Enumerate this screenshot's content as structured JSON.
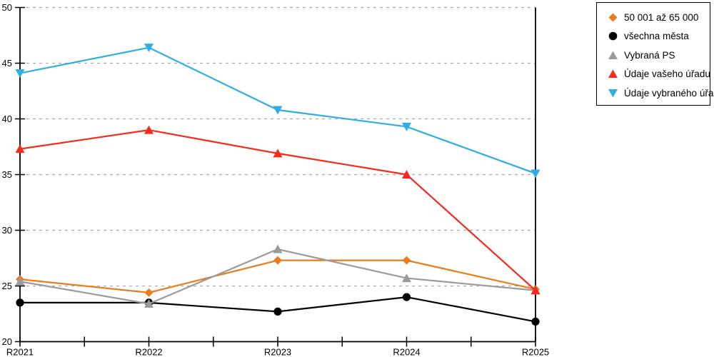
{
  "chart_data": {
    "type": "line",
    "categories": [
      "R2021",
      "R2022",
      "R2023",
      "R2024",
      "R2025"
    ],
    "y_ticks": [
      20,
      25,
      30,
      35,
      40,
      45,
      50
    ],
    "ylim": [
      20,
      50
    ],
    "grid": "horizontal-dashed",
    "legend_position": "top-right",
    "series": [
      {
        "name": "50 001 až 65 000",
        "color": "#E87D1E",
        "marker": "diamond",
        "values": [
          25.6,
          24.4,
          27.3,
          27.3,
          24.7
        ]
      },
      {
        "name": "všechna města",
        "color": "#000000",
        "marker": "circle",
        "values": [
          23.5,
          23.5,
          22.7,
          24.0,
          21.8
        ]
      },
      {
        "name": "Vybraná PS",
        "color": "#9B9B9B",
        "marker": "triangle-up",
        "values": [
          25.4,
          23.4,
          28.3,
          25.7,
          24.6
        ]
      },
      {
        "name": "Údaje vašeho úřadu",
        "color": "#F62A1C",
        "marker": "triangle-up",
        "values": [
          37.3,
          39.0,
          36.9,
          35.0,
          24.6
        ]
      },
      {
        "name": "Údaje vybraného úřadu",
        "color": "#30AEE4",
        "marker": "triangle-down",
        "values": [
          44.1,
          46.4,
          40.8,
          39.3,
          35.1
        ]
      }
    ]
  },
  "colors": {
    "grid": "#ABABAB",
    "axis": "#000000",
    "tick_label": "#000000"
  }
}
